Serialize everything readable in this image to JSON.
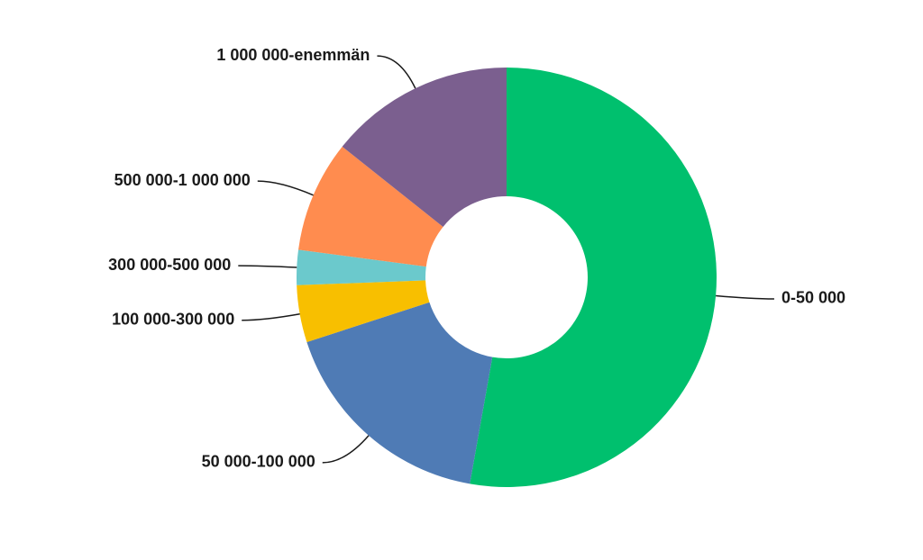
{
  "chart_data": {
    "type": "donut",
    "categories": [
      "0-50 000",
      "50 000-100 000",
      "100 000-300 000",
      "300 000-500 000",
      "500 000-1 000 000",
      "1 000 000-enemmän"
    ],
    "values": [
      52.8,
      17.2,
      4.4,
      2.7,
      8.6,
      14.3
    ],
    "colors": [
      "#00c06e",
      "#4f7bb5",
      "#f8bf00",
      "#6bc9cc",
      "#ff8c4f",
      "#7b5f8f"
    ]
  }
}
